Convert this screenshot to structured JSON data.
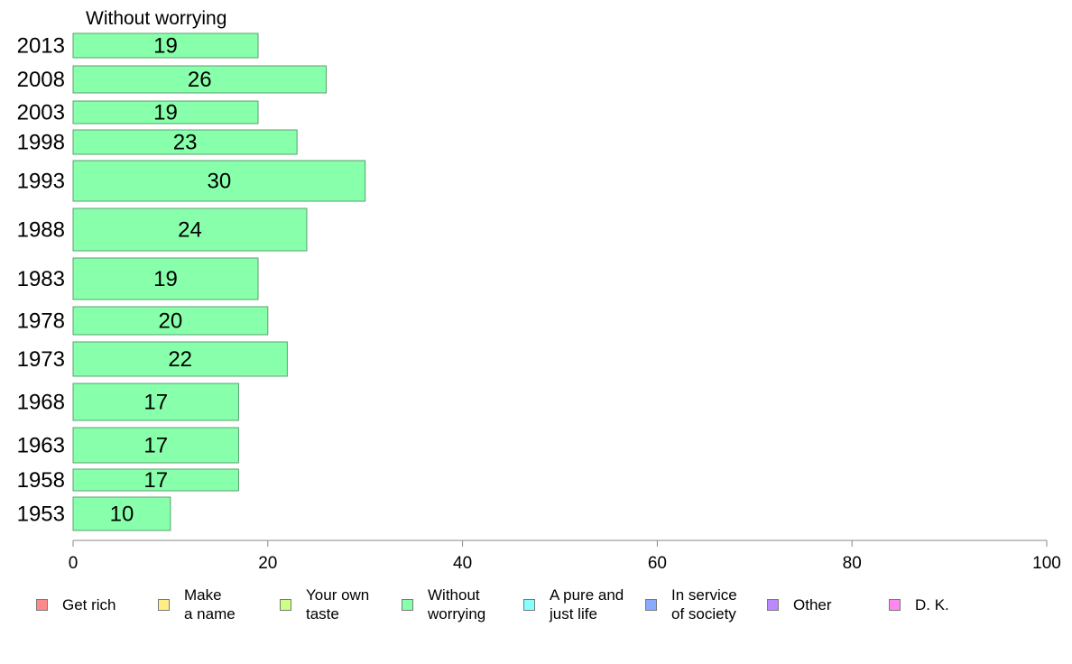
{
  "chart_data": {
    "type": "bar",
    "orientation": "horizontal",
    "title": "Without worrying",
    "categories": [
      "2013",
      "2008",
      "2003",
      "1998",
      "1993",
      "1988",
      "1983",
      "1978",
      "1973",
      "1968",
      "1963",
      "1958",
      "1953"
    ],
    "values": [
      19,
      26,
      19,
      23,
      30,
      24,
      19,
      20,
      22,
      17,
      17,
      17,
      10
    ],
    "xlim": [
      0,
      100
    ],
    "xticks": [
      "0",
      "20",
      "40",
      "60",
      "80",
      "100"
    ],
    "series_color": "#88ffaa",
    "grid": false,
    "legend_position": "bottom",
    "legend": [
      {
        "label": "Get rich",
        "color": "#ff8888"
      },
      {
        "label": "Make\na name",
        "color": "#ffee88"
      },
      {
        "label": "Your own\ntaste",
        "color": "#ccff88"
      },
      {
        "label": "Without\nworrying",
        "color": "#88ffaa"
      },
      {
        "label": "A pure and\njust life",
        "color": "#88ffff"
      },
      {
        "label": "In service\nof society",
        "color": "#88aaff"
      },
      {
        "label": "Other",
        "color": "#bb88ff"
      },
      {
        "label": "D. K.",
        "color": "#ff88ee"
      }
    ]
  }
}
